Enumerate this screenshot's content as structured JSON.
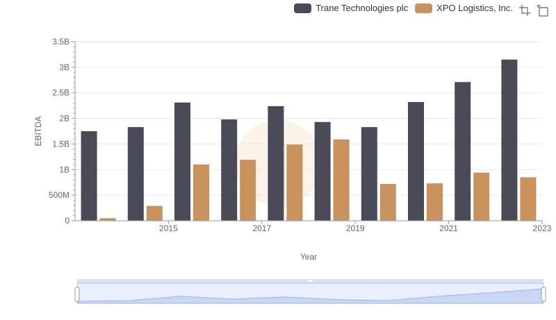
{
  "chart_data": {
    "type": "bar",
    "x": [
      2014,
      2015,
      2016,
      2017,
      2018,
      2019,
      2020,
      2021,
      2022,
      2023
    ],
    "x_tick_labels": [
      "2015",
      "2017",
      "2019",
      "2021",
      "2023"
    ],
    "series": [
      {
        "name": "Trane Technologies plc",
        "color": "#4a4956",
        "values": [
          1750000000.0,
          1830000000.0,
          2310000000.0,
          1980000000.0,
          2240000000.0,
          1930000000.0,
          1830000000.0,
          2320000000.0,
          2710000000.0,
          3150000000.0
        ]
      },
      {
        "name": "XPO Logistics, Inc.",
        "color": "#c8915e",
        "values": [
          50000000.0,
          290000000.0,
          1100000000.0,
          1190000000.0,
          1490000000.0,
          1590000000.0,
          720000000.0,
          730000000.0,
          940000000.0,
          850000000.0
        ]
      }
    ],
    "xlabel": "Year",
    "ylabel": "EBITDA",
    "ylim": [
      0,
      3500000000.0
    ],
    "y_ticks": [
      0,
      500000000.0,
      1000000000.0,
      1500000000.0,
      2000000000.0,
      2500000000.0,
      3000000000.0,
      3500000000.0
    ],
    "y_tick_labels": [
      "0",
      "500M",
      "1B",
      "1.5B",
      "2B",
      "2.5B",
      "3B",
      "3.5B"
    ],
    "grid": true,
    "legend_position": "top-right"
  },
  "toolbar": {
    "zoom_icon": "data-zoom-icon",
    "reset_icon": "zoom-reset-icon"
  }
}
